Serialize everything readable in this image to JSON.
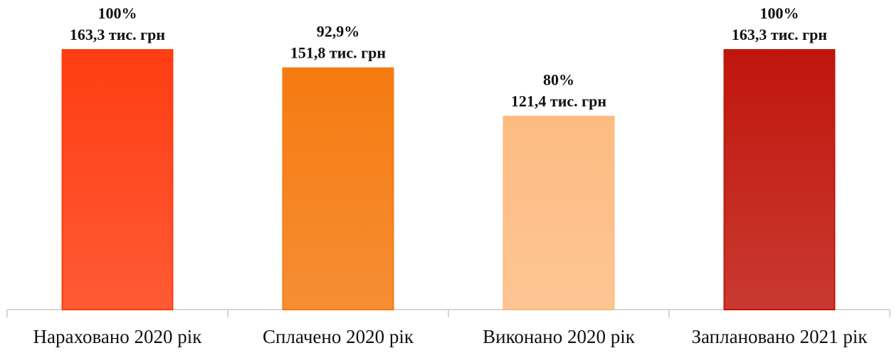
{
  "chart_data": {
    "type": "bar",
    "categories": [
      "Нараховано 2020 рік",
      "Сплачено 2020 рік",
      "Виконано 2020 рік",
      "Заплановано 2021 рік"
    ],
    "values": [
      163.3,
      151.8,
      121.4,
      163.3
    ],
    "value_labels": [
      "163,3 тис. грн",
      "151,8 тис. грн",
      "121,4 тис. грн",
      "163,3 тис. грн"
    ],
    "percent_labels": [
      "100%",
      "92,9%",
      "80%",
      "100%"
    ],
    "colors": [
      "#ff3d12",
      "#f57a10",
      "#fdbb82",
      "#c0160c"
    ],
    "ylim": [
      0,
      163.3
    ]
  }
}
